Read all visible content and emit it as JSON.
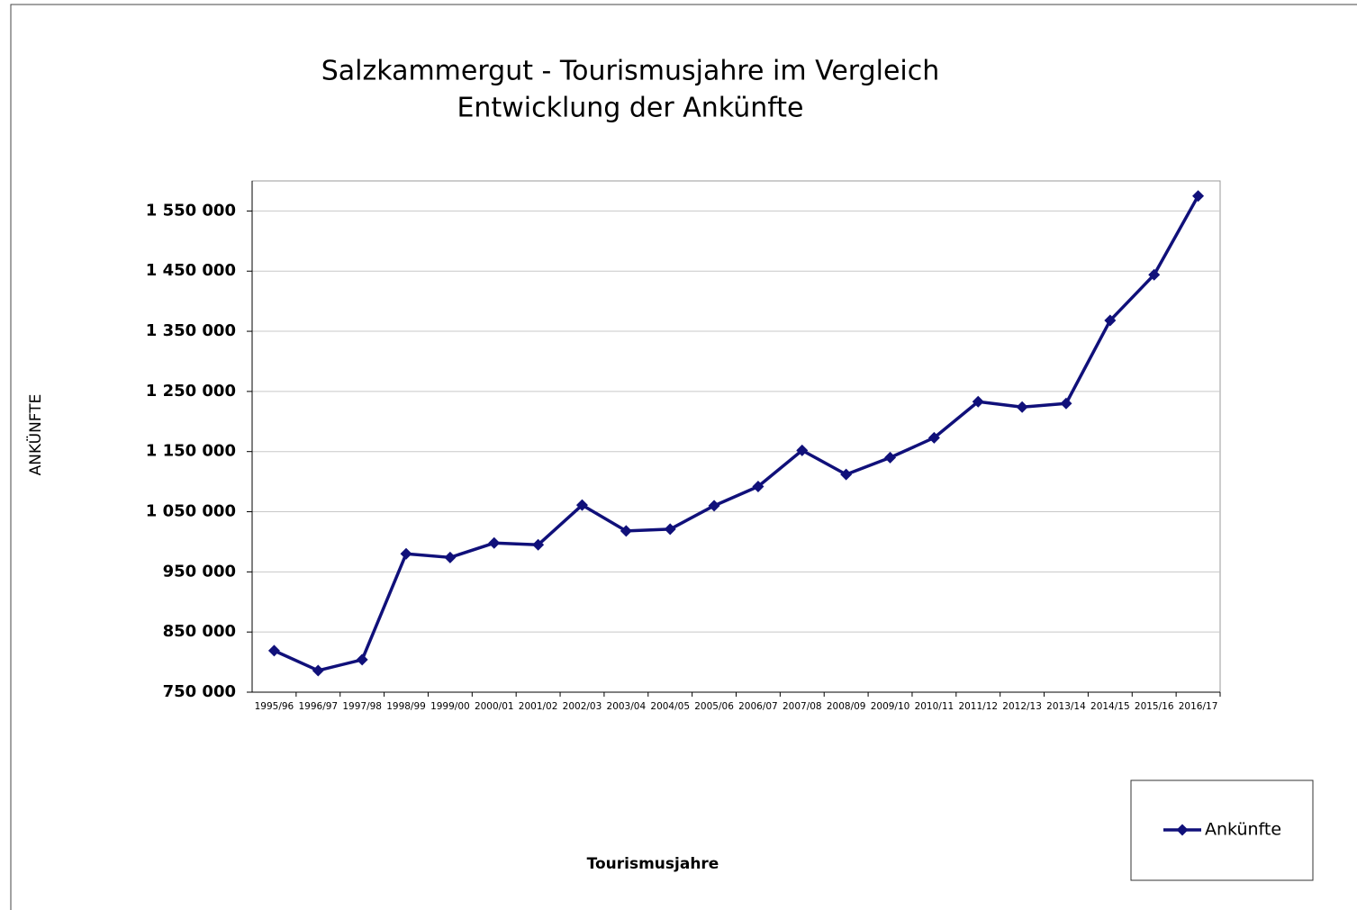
{
  "chart_data": {
    "type": "line",
    "title": "Salzkammergut - Tourismusjahre im Vergleich",
    "subtitle": "Entwicklung der Ankünfte",
    "x_label": "Tourismusjahre",
    "y_label": "ANKÜNFTE",
    "categories": [
      "1995/96",
      "1996/97",
      "1997/98",
      "1998/99",
      "1999/00",
      "2000/01",
      "2001/02",
      "2002/03",
      "2003/04",
      "2004/05",
      "2005/06",
      "2006/07",
      "2007/08",
      "2008/09",
      "2009/10",
      "2010/11",
      "2011/12",
      "2012/13",
      "2013/14",
      "2014/15",
      "2015/16",
      "2016/17"
    ],
    "series": [
      {
        "name": "Ankünfte",
        "color": "#10107a",
        "values": [
          819000,
          786000,
          804000,
          980000,
          974000,
          998000,
          995000,
          1061000,
          1018000,
          1021000,
          1060000,
          1092000,
          1152000,
          1112000,
          1140000,
          1173000,
          1233000,
          1224000,
          1230000,
          1368000,
          1444000,
          1575000
        ]
      }
    ],
    "ylim": [
      750000,
      1600000
    ],
    "yticks": [
      {
        "value": 750000,
        "label": "750 000"
      },
      {
        "value": 850000,
        "label": "850 000"
      },
      {
        "value": 950000,
        "label": "950 000"
      },
      {
        "value": 1050000,
        "label": "1 050 000"
      },
      {
        "value": 1150000,
        "label": "1 150 000"
      },
      {
        "value": 1250000,
        "label": "1 250 000"
      },
      {
        "value": 1350000,
        "label": "1 350 000"
      },
      {
        "value": 1450000,
        "label": "1 450 000"
      },
      {
        "value": 1550000,
        "label": "1 550 000"
      }
    ],
    "grid": true,
    "legend": "bottom-right"
  }
}
